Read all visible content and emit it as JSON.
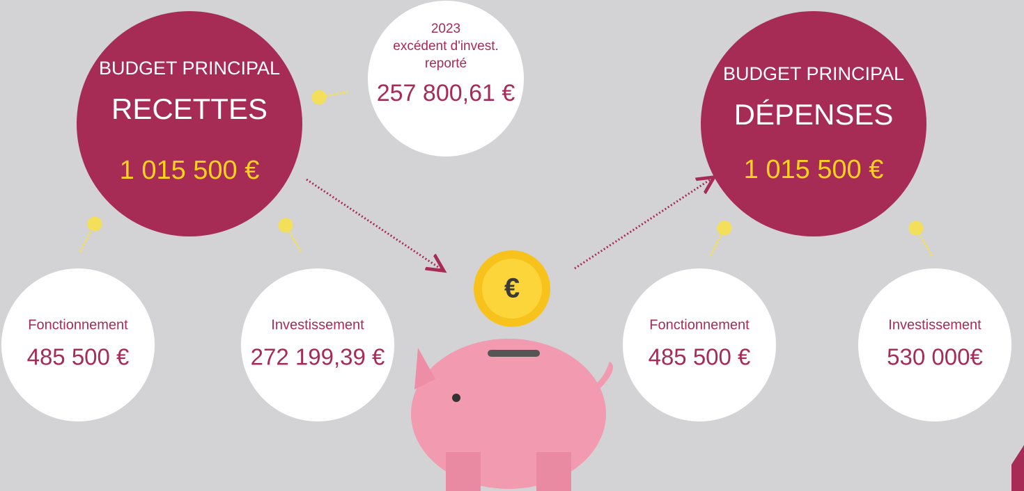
{
  "recettes": {
    "title": "BUDGET PRINCIPAL",
    "heading": "RECETTES",
    "amount": "1 015 500 €"
  },
  "report": {
    "year": "2023",
    "line1": "excédent d'invest.",
    "line2": "reporté",
    "amount": "257 800,61 €"
  },
  "depenses": {
    "title": "BUDGET PRINCIPAL",
    "heading": "DÉPENSES",
    "amount": "1 015 500 €"
  },
  "details": [
    {
      "label": "Fonctionnement",
      "amount": "485 500 €"
    },
    {
      "label": "Investissement",
      "amount": "272 199,39 €"
    },
    {
      "label": "Fonctionnement",
      "amount": "485 500 €"
    },
    {
      "label": "Investissement",
      "amount": "530 000€"
    }
  ],
  "coin": "€"
}
